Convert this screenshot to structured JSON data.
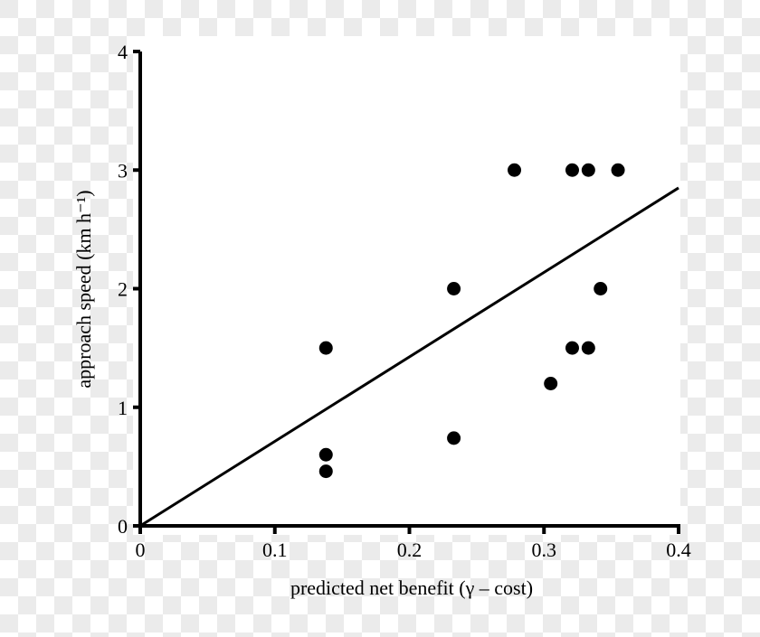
{
  "chart_data": {
    "type": "scatter",
    "xlabel": "predicted net benefit (γ – cost)",
    "ylabel": "approach speed (km h⁻¹)",
    "xlim": [
      0,
      0.4
    ],
    "ylim": [
      0,
      4
    ],
    "xticks": [
      "0",
      "0.1",
      "0.2",
      "0.3",
      "0.4"
    ],
    "yticks": [
      "0",
      "1",
      "2",
      "3",
      "4"
    ],
    "grid": false,
    "points": [
      {
        "x": 0.138,
        "y": 1.5
      },
      {
        "x": 0.138,
        "y": 0.6
      },
      {
        "x": 0.138,
        "y": 0.46
      },
      {
        "x": 0.233,
        "y": 2.0
      },
      {
        "x": 0.233,
        "y": 0.74
      },
      {
        "x": 0.278,
        "y": 3.0
      },
      {
        "x": 0.305,
        "y": 1.2
      },
      {
        "x": 0.321,
        "y": 3.0
      },
      {
        "x": 0.333,
        "y": 3.0
      },
      {
        "x": 0.355,
        "y": 3.0
      },
      {
        "x": 0.342,
        "y": 2.0
      },
      {
        "x": 0.321,
        "y": 1.5
      },
      {
        "x": 0.333,
        "y": 1.5
      }
    ],
    "fit_line": {
      "x": [
        0,
        0.4
      ],
      "y": [
        0,
        2.85
      ]
    },
    "colors": {
      "points": "#000000",
      "line": "#000000",
      "plot_background": "#ffffff"
    }
  }
}
